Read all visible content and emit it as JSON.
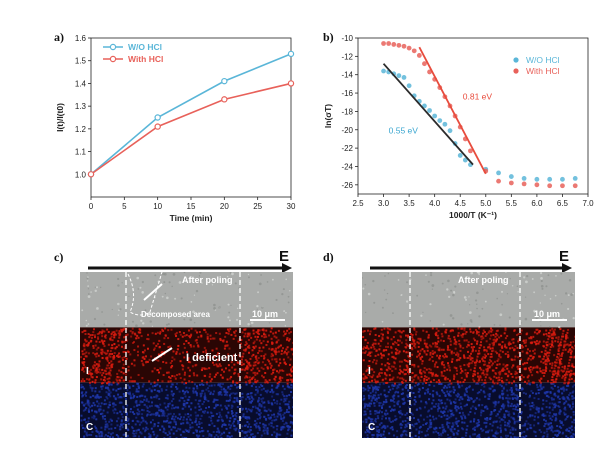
{
  "panels": {
    "a": "a)",
    "b": "b)",
    "c": "c)",
    "d": "d)"
  },
  "chart_data": [
    {
      "type": "line",
      "xlabel": "Time (min)",
      "ylabel": "I(t)/I(t0)",
      "xlim": [
        0,
        30
      ],
      "ylim": [
        0.9,
        1.6
      ],
      "xticks": [
        "0",
        "5",
        "10",
        "15",
        "20",
        "25",
        "30"
      ],
      "yticks": [
        "1.0",
        "1.1",
        "1.2",
        "1.3",
        "1.4",
        "1.5",
        "1.6"
      ],
      "legend_position": "top-left",
      "series": [
        {
          "name": "W/O HCl",
          "color": "#5ab6d8",
          "x": [
            0,
            10,
            20,
            30
          ],
          "y": [
            1.0,
            1.25,
            1.41,
            1.53
          ]
        },
        {
          "name": "With HCl",
          "color": "#e8615a",
          "x": [
            0,
            10,
            20,
            30
          ],
          "y": [
            1.0,
            1.21,
            1.33,
            1.4
          ]
        }
      ]
    },
    {
      "type": "scatter",
      "xlabel": "1000/T (K⁻¹)",
      "ylabel": "ln(σT)",
      "xlim": [
        2.5,
        7.0
      ],
      "ylim": [
        -27,
        -10
      ],
      "xticks": [
        "2.5",
        "3.0",
        "3.5",
        "4.0",
        "4.5",
        "5.0",
        "5.5",
        "6.0",
        "6.5",
        "7.0"
      ],
      "yticks": [
        "-10",
        "-12",
        "-14",
        "-16",
        "-18",
        "-20",
        "-22",
        "-24",
        "-26"
      ],
      "legend_position": "top-right",
      "series": [
        {
          "name": "W/O HCl",
          "color": "#5ab6d8",
          "x": [
            3.0,
            3.1,
            3.2,
            3.3,
            3.4,
            3.5,
            3.6,
            3.7,
            3.8,
            3.9,
            4.0,
            4.1,
            4.2,
            4.3,
            4.4,
            4.5,
            4.6,
            4.7,
            5.0,
            5.25,
            5.5,
            5.75,
            6.0,
            6.25,
            6.5,
            6.75
          ],
          "y": [
            -13.6,
            -13.7,
            -13.9,
            -14.1,
            -14.3,
            -15.2,
            -16.3,
            -16.9,
            -17.4,
            -17.9,
            -18.5,
            -19.0,
            -19.4,
            -20.1,
            -21.5,
            -22.8,
            -23.3,
            -23.8,
            -24.3,
            -24.7,
            -25.1,
            -25.3,
            -25.4,
            -25.4,
            -25.4,
            -25.3
          ]
        },
        {
          "name": "With HCl",
          "color": "#e8615a",
          "x": [
            3.0,
            3.1,
            3.2,
            3.3,
            3.4,
            3.5,
            3.6,
            3.7,
            3.8,
            3.9,
            4.0,
            4.1,
            4.2,
            4.3,
            4.4,
            4.5,
            4.6,
            4.7,
            5.0,
            5.25,
            5.5,
            5.75,
            6.0,
            6.25,
            6.5,
            6.75
          ],
          "y": [
            -10.6,
            -10.6,
            -10.7,
            -10.8,
            -10.9,
            -11.1,
            -11.4,
            -11.9,
            -12.8,
            -13.7,
            -14.5,
            -15.4,
            -16.4,
            -17.4,
            -18.5,
            -19.7,
            -21.0,
            -22.3,
            -24.5,
            -25.6,
            -25.8,
            -25.9,
            -26.0,
            -26.1,
            -26.1,
            -26.1
          ]
        }
      ],
      "fits": [
        {
          "label": "0.55 eV",
          "color": "#2b2b2b",
          "x": [
            3.0,
            4.75
          ],
          "y": [
            -12.8,
            -23.8
          ]
        },
        {
          "label": "0.81 eV",
          "color": "#e84c3d",
          "x": [
            3.7,
            5.0
          ],
          "y": [
            -11.0,
            -24.8
          ]
        }
      ]
    }
  ],
  "maps": {
    "c": {
      "field_label": "E",
      "after_poling": "After poling",
      "decomposed": "Decomposed area",
      "scale": "10 μm",
      "i_deficient": "I deficient",
      "element_i": "I",
      "element_c": "C"
    },
    "d": {
      "field_label": "E",
      "after_poling": "After poling",
      "scale": "10 μm",
      "element_i": "I",
      "element_c": "C"
    }
  },
  "colors": {
    "sem": "#a9aba9",
    "iodine_map": "#d81c10",
    "carbon_map": "#1e36a8"
  }
}
